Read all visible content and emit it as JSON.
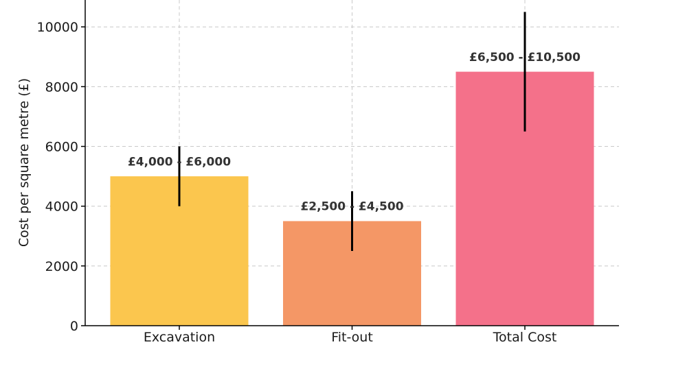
{
  "chart_data": {
    "type": "bar",
    "title": "",
    "xlabel": "",
    "ylabel": "Cost per square metre (£)",
    "categories": [
      "Excavation",
      "Fit-out",
      "Total Cost"
    ],
    "values": [
      5000,
      3500,
      8500
    ],
    "error_low": [
      4000,
      2500,
      6500
    ],
    "error_high": [
      6000,
      4500,
      10500
    ],
    "data_labels": [
      "£4,000 - £6,000",
      "£2,500 - £4,500",
      "£6,500 - £10,500"
    ],
    "colors": [
      "#fbc64e",
      "#f49766",
      "#f4718a"
    ],
    "ylim": [
      0,
      10900
    ],
    "yticks": [
      0,
      2000,
      4000,
      6000,
      8000,
      10000
    ],
    "ytick_labels": [
      "0",
      "2000",
      "4000",
      "6000",
      "8000",
      "10000"
    ],
    "grid": true
  }
}
